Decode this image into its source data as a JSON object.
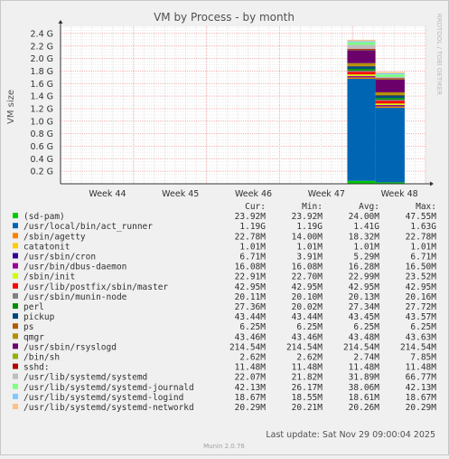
{
  "chart_data": {
    "type": "area",
    "title": "VM by Process - by month",
    "ylabel": "VM size",
    "watermark": "RRDTOOL / TOBI OETIKER",
    "ylim_bytes": [
      0,
      2700000000
    ],
    "y_ticks": [
      {
        "label": "0.2 G",
        "value": 214748364.8
      },
      {
        "label": "0.4 G",
        "value": 429496729.6
      },
      {
        "label": "0.6 G",
        "value": 644245094.4
      },
      {
        "label": "0.8 G",
        "value": 858993459.2
      },
      {
        "label": "1.0 G",
        "value": 1073741824
      },
      {
        "label": "1.2 G",
        "value": 1288490188.8
      },
      {
        "label": "1.4 G",
        "value": 1503238553.6
      },
      {
        "label": "1.6 G",
        "value": 1717986918.4
      },
      {
        "label": "1.8 G",
        "value": 1932735283.2
      },
      {
        "label": "2.0 G",
        "value": 2147483648
      },
      {
        "label": "2.2 G",
        "value": 2362232012.8
      },
      {
        "label": "2.4 G",
        "value": 2576980377.6
      }
    ],
    "x_range_days": [
      0,
      35
    ],
    "x_ticks": [
      {
        "label": "Week 44",
        "day": 4.5
      },
      {
        "label": "Week 45",
        "day": 11.5
      },
      {
        "label": "Week 46",
        "day": 18.5
      },
      {
        "label": "Week 47",
        "day": 25.5
      },
      {
        "label": "Week 48",
        "day": 32.5
      }
    ],
    "data_segments": [
      {
        "from_day": 27.5,
        "to_day": 30.2,
        "series_index_values": "max"
      },
      {
        "from_day": 30.2,
        "to_day": 33.0,
        "series_index_values": "cur"
      }
    ],
    "columns": [
      "Cur:",
      "Min:",
      "Avg:",
      "Max:"
    ],
    "series": [
      {
        "name": "(sd-pam)",
        "color": "#00cc00",
        "cur": "23.92M",
        "min": "23.92M",
        "avg": "24.00M",
        "max": "47.55M",
        "cur_v": 25082592,
        "max_v": 49859379
      },
      {
        "name": "/usr/local/bin/act_runner",
        "color": "#0066b3",
        "cur": "1.19G",
        "min": "1.19G",
        "avg": "1.41G",
        "max": "1.63G",
        "cur_v": 1277752770,
        "max_v": 1750199173
      },
      {
        "name": "/sbin/agetty",
        "color": "#ff8000",
        "cur": "22.78M",
        "min": "14.00M",
        "avg": "18.32M",
        "max": "22.78M",
        "cur_v": 23886168,
        "max_v": 23886168
      },
      {
        "name": "catatonit",
        "color": "#ffcc00",
        "cur": "1.01M",
        "min": "1.01M",
        "avg": "1.01M",
        "max": "1.01M",
        "cur_v": 1059061,
        "max_v": 1059061
      },
      {
        "name": "/usr/sbin/cron",
        "color": "#330099",
        "cur": "6.71M",
        "min": "3.91M",
        "avg": "5.29M",
        "max": "6.71M",
        "cur_v": 7035945,
        "max_v": 7035945
      },
      {
        "name": "/usr/bin/dbus-daemon",
        "color": "#990099",
        "cur": "16.08M",
        "min": "16.08M",
        "avg": "16.28M",
        "max": "16.50M",
        "cur_v": 16861102,
        "max_v": 17301504
      },
      {
        "name": "/sbin/init",
        "color": "#ccff00",
        "cur": "22.91M",
        "min": "22.70M",
        "avg": "22.99M",
        "max": "23.52M",
        "cur_v": 24022483,
        "max_v": 24662507
      },
      {
        "name": "/usr/lib/postfix/sbin/master",
        "color": "#ff0000",
        "cur": "42.95M",
        "min": "42.95M",
        "avg": "42.95M",
        "max": "42.95M",
        "cur_v": 45036339,
        "max_v": 45036339
      },
      {
        "name": "/usr/sbin/munin-node",
        "color": "#808080",
        "cur": "20.11M",
        "min": "20.10M",
        "avg": "20.13M",
        "max": "20.16M",
        "cur_v": 21086863,
        "max_v": 21139292
      },
      {
        "name": "perl",
        "color": "#008f00",
        "cur": "27.36M",
        "min": "20.02M",
        "avg": "27.34M",
        "max": "27.72M",
        "cur_v": 28689039,
        "max_v": 29066526
      },
      {
        "name": "pickup",
        "color": "#00487d",
        "cur": "43.44M",
        "min": "43.44M",
        "avg": "43.45M",
        "max": "43.57M",
        "cur_v": 45550141,
        "max_v": 45686456
      },
      {
        "name": "ps",
        "color": "#b35a00",
        "cur": "6.25M",
        "min": "6.25M",
        "avg": "6.25M",
        "max": "6.25M",
        "cur_v": 6553600,
        "max_v": 6553600
      },
      {
        "name": "qmgr",
        "color": "#b38f00",
        "cur": "43.46M",
        "min": "43.46M",
        "avg": "43.48M",
        "max": "43.63M",
        "cur_v": 45571113,
        "max_v": 45749371
      },
      {
        "name": "/usr/sbin/rsyslogd",
        "color": "#6b006b",
        "cur": "214.54M",
        "min": "214.54M",
        "avg": "214.54M",
        "max": "214.54M",
        "cur_v": 224960348,
        "max_v": 224960348
      },
      {
        "name": "/bin/sh",
        "color": "#8fb300",
        "cur": "2.62M",
        "min": "2.62M",
        "avg": "2.74M",
        "max": "7.85M",
        "cur_v": 2747269,
        "max_v": 8231321
      },
      {
        "name": "sshd:",
        "color": "#b30000",
        "cur": "11.48M",
        "min": "11.48M",
        "avg": "11.48M",
        "max": "11.48M",
        "cur_v": 12037652,
        "max_v": 12037652
      },
      {
        "name": "/usr/lib/systemd/systemd",
        "color": "#bebebe",
        "cur": "22.07M",
        "min": "21.82M",
        "avg": "31.89M",
        "max": "66.77M",
        "cur_v": 23141683,
        "max_v": 70013747
      },
      {
        "name": "/usr/lib/systemd/systemd-journald",
        "color": "#80ff80",
        "cur": "42.13M",
        "min": "26.17M",
        "avg": "38.06M",
        "max": "42.13M",
        "cur_v": 44176507,
        "max_v": 44176507
      },
      {
        "name": "/usr/lib/systemd/systemd-logind",
        "color": "#80c9ff",
        "cur": "18.67M",
        "min": "18.55M",
        "avg": "18.61M",
        "max": "18.67M",
        "cur_v": 19576914,
        "max_v": 19576914
      },
      {
        "name": "/usr/lib/systemd/systemd-networkd",
        "color": "#ffc080",
        "cur": "20.29M",
        "min": "20.21M",
        "avg": "20.26M",
        "max": "20.29M",
        "cur_v": 21275607,
        "max_v": 21275607
      }
    ],
    "last_update": "Last update: Sat Nov 29 09:00:04 2025",
    "footer": "Munin 2.0.76",
    "grid": true
  }
}
